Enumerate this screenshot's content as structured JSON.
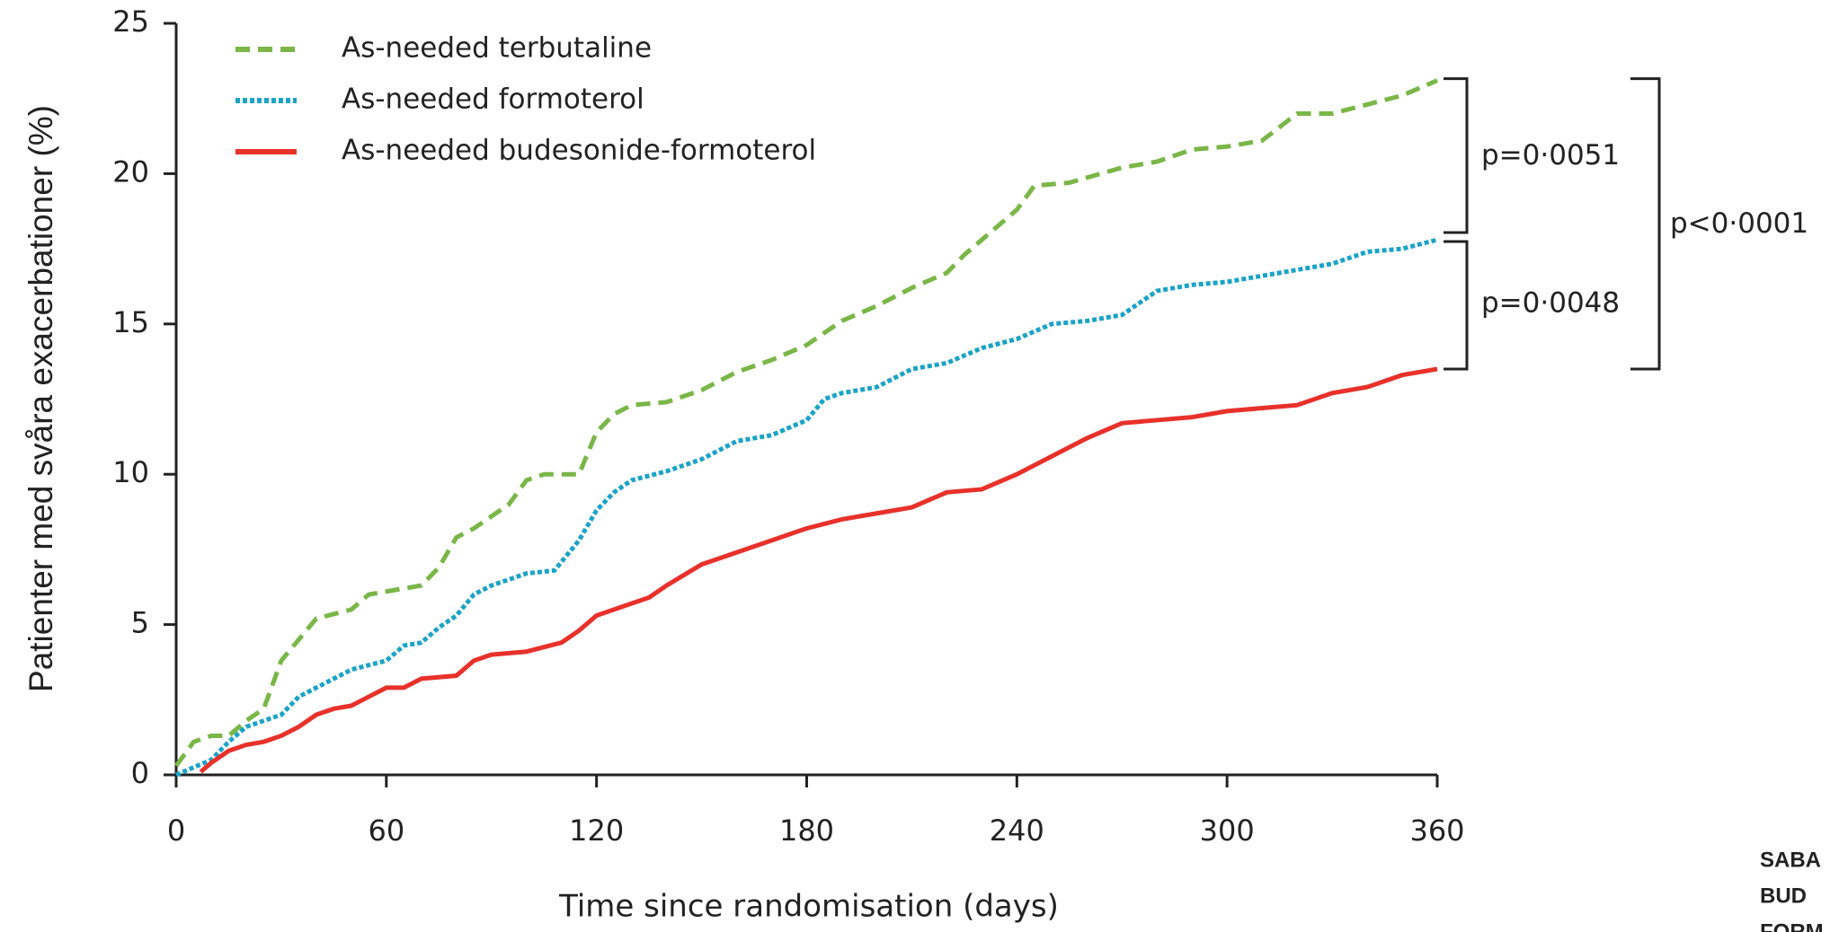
{
  "chart_data": {
    "type": "line",
    "y_label": "Patienter med svåra exacerbationer (%)",
    "x_label": "Time since randomisation (days)",
    "xlim": [
      0,
      360
    ],
    "xticks": [
      0,
      60,
      120,
      180,
      240,
      300,
      360
    ],
    "ylim": [
      0,
      25
    ],
    "yticks": [
      0,
      5,
      10,
      15,
      20,
      25
    ],
    "series": [
      {
        "name": "As-needed terbutaline",
        "color": "#7ab648",
        "line_style": "dashed",
        "x": [
          0,
          5,
          10,
          15,
          20,
          25,
          30,
          35,
          40,
          50,
          55,
          60,
          70,
          75,
          80,
          85,
          90,
          95,
          100,
          105,
          115,
          120,
          125,
          130,
          140,
          150,
          160,
          170,
          180,
          190,
          200,
          210,
          220,
          225,
          230,
          240,
          245,
          255,
          270,
          280,
          290,
          300,
          310,
          320,
          330,
          340,
          350,
          360
        ],
        "values": [
          0.3,
          1.1,
          1.3,
          1.3,
          1.8,
          2.2,
          3.8,
          4.5,
          5.2,
          5.5,
          6.0,
          6.1,
          6.3,
          6.9,
          7.9,
          8.2,
          8.6,
          9.0,
          9.8,
          10.0,
          10.0,
          11.4,
          12.0,
          12.3,
          12.4,
          12.8,
          13.4,
          13.8,
          14.3,
          15.1,
          15.6,
          16.2,
          16.7,
          17.3,
          17.8,
          18.8,
          19.6,
          19.7,
          20.2,
          20.4,
          20.8,
          20.9,
          21.1,
          22.0,
          22.0,
          22.3,
          22.6,
          23.1
        ]
      },
      {
        "name": "As-needed formoterol",
        "color": "#1ba3c6",
        "line_style": "dotted",
        "x": [
          0,
          10,
          15,
          20,
          30,
          35,
          40,
          50,
          60,
          65,
          70,
          75,
          80,
          85,
          90,
          100,
          108,
          115,
          120,
          125,
          130,
          140,
          150,
          160,
          170,
          180,
          185,
          190,
          200,
          210,
          220,
          230,
          240,
          250,
          260,
          270,
          280,
          290,
          300,
          310,
          320,
          330,
          340,
          350,
          360
        ],
        "values": [
          0,
          0.5,
          1.1,
          1.6,
          2.0,
          2.6,
          2.9,
          3.5,
          3.8,
          4.3,
          4.4,
          4.9,
          5.3,
          6.0,
          6.3,
          6.7,
          6.8,
          7.8,
          8.8,
          9.4,
          9.8,
          10.1,
          10.5,
          11.1,
          11.3,
          11.8,
          12.5,
          12.7,
          12.9,
          13.5,
          13.7,
          14.2,
          14.5,
          15.0,
          15.1,
          15.3,
          16.1,
          16.3,
          16.4,
          16.6,
          16.8,
          17.0,
          17.4,
          17.5,
          17.8
        ]
      },
      {
        "name": "As-needed budesonide-formoterol",
        "color": "#e8312a",
        "line_style": "solid",
        "x": [
          7,
          10,
          15,
          20,
          25,
          30,
          35,
          40,
          45,
          50,
          55,
          60,
          65,
          70,
          80,
          85,
          90,
          100,
          110,
          115,
          120,
          130,
          135,
          140,
          150,
          160,
          170,
          180,
          190,
          200,
          210,
          220,
          230,
          240,
          250,
          260,
          270,
          280,
          290,
          300,
          310,
          320,
          330,
          340,
          350,
          360
        ],
        "values": [
          0.1,
          0.4,
          0.8,
          1.0,
          1.1,
          1.3,
          1.6,
          2.0,
          2.2,
          2.3,
          2.6,
          2.9,
          2.9,
          3.2,
          3.3,
          3.8,
          4.0,
          4.1,
          4.4,
          4.8,
          5.3,
          5.7,
          5.9,
          6.3,
          7.0,
          7.4,
          7.8,
          8.2,
          8.5,
          8.7,
          8.9,
          9.4,
          9.5,
          10.0,
          10.6,
          11.2,
          11.7,
          11.8,
          11.9,
          12.1,
          12.2,
          12.3,
          12.7,
          12.9,
          13.3,
          13.5
        ]
      }
    ],
    "annotations": [
      "p=0·0051",
      "p=0·0048",
      "p<0·0001"
    ],
    "side_labels": [
      "SABA",
      "BUD",
      "FORM"
    ]
  }
}
